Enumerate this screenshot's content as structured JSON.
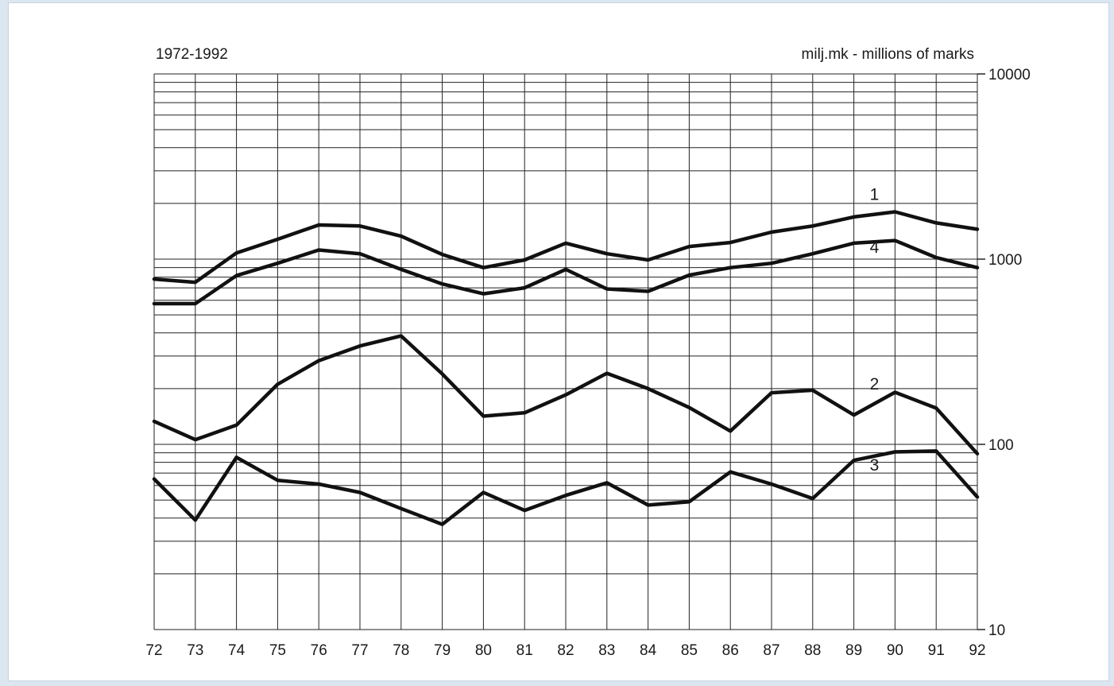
{
  "header": {
    "period": "1972-1992",
    "unit": "milj.mk - millions of marks"
  },
  "colors": {
    "line": "#111111",
    "grid": "#222222",
    "background": "#ffffff",
    "outer": "#dbe6f0"
  },
  "chart_data": {
    "type": "line",
    "title": "",
    "xlabel": "",
    "ylabel": "",
    "y_scale": "log",
    "ylim": [
      10,
      10000
    ],
    "xlim": [
      72,
      92
    ],
    "grid": true,
    "x": [
      "72",
      "73",
      "74",
      "75",
      "76",
      "77",
      "78",
      "79",
      "80",
      "81",
      "82",
      "83",
      "84",
      "85",
      "86",
      "87",
      "88",
      "89",
      "90",
      "91",
      "92"
    ],
    "y_ticks": [
      "10",
      "100",
      "1000",
      "10000"
    ],
    "y_tick_values": [
      10,
      100,
      1000,
      10000
    ],
    "series": [
      {
        "name": "1",
        "values": [
          780,
          750,
          1080,
          1280,
          1530,
          1510,
          1330,
          1060,
          900,
          990,
          1220,
          1070,
          990,
          1170,
          1230,
          1400,
          1510,
          1690,
          1800,
          1570,
          1450
        ]
      },
      {
        "name": "4",
        "values": [
          575,
          575,
          815,
          950,
          1120,
          1070,
          880,
          735,
          650,
          700,
          880,
          690,
          670,
          820,
          900,
          950,
          1070,
          1220,
          1260,
          1020,
          900
        ]
      },
      {
        "name": "2",
        "values": [
          133,
          106,
          127,
          211,
          283,
          340,
          385,
          240,
          142,
          148,
          185,
          242,
          200,
          158,
          118,
          190,
          196,
          144,
          191,
          157,
          89
        ]
      },
      {
        "name": "3",
        "values": [
          65,
          39,
          85,
          64,
          61,
          55,
          45,
          37,
          55,
          44,
          53,
          62,
          47,
          49,
          71,
          61,
          51,
          82,
          91,
          92,
          52
        ]
      }
    ]
  }
}
